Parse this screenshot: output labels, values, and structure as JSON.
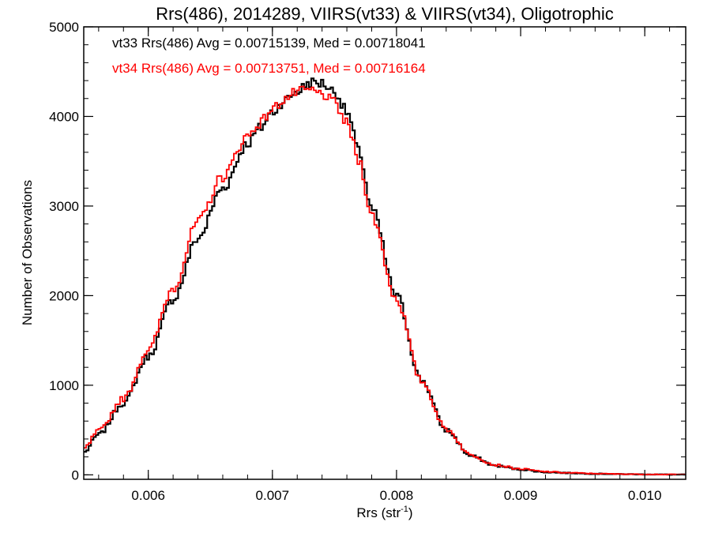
{
  "chart_data": {
    "type": "line",
    "title": "Rrs(486), 2014289, VIIRS(vt33) & VIIRS(vt34), Oligotrophic",
    "xlabel": "Rrs (str",
    "xlabel_sup": "-1",
    "xlabel_end": ")",
    "ylabel": "Number of Observations",
    "xlim": [
      0.00548,
      0.01033
    ],
    "ylim": [
      -50,
      5000
    ],
    "xticks": [
      0.006,
      0.007,
      0.008,
      0.009,
      0.01
    ],
    "xtick_labels": [
      "0.006",
      "0.007",
      "0.008",
      "0.009",
      "0.010"
    ],
    "yticks": [
      0,
      1000,
      2000,
      3000,
      4000,
      5000
    ],
    "ytick_labels": [
      "0",
      "1000",
      "2000",
      "3000",
      "4000",
      "5000"
    ],
    "grid": false,
    "series": [
      {
        "name": "vt33 Rrs(486) Avg = 0.00715139, Med = 0.00718041",
        "color": "#000000",
        "step": true,
        "x": [
          0.00548,
          0.0056,
          0.0058,
          0.006,
          0.0062,
          0.0064,
          0.0066,
          0.0068,
          0.0069,
          0.007,
          0.0071,
          0.0072,
          0.0073,
          0.0074,
          0.0075,
          0.0076,
          0.0077,
          0.0078,
          0.008,
          0.0082,
          0.0084,
          0.0086,
          0.0088,
          0.009,
          0.0092,
          0.0094,
          0.0096,
          0.0098,
          0.01,
          0.0102,
          0.01033
        ],
        "y": [
          250,
          450,
          800,
          1320,
          1960,
          2640,
          3200,
          3700,
          3870,
          4050,
          4180,
          4280,
          4380,
          4370,
          4280,
          4050,
          3600,
          2960,
          2000,
          1060,
          500,
          210,
          100,
          60,
          30,
          20,
          12,
          8,
          5,
          3,
          2
        ]
      },
      {
        "name": "vt34 Rrs(486) Avg = 0.00713751, Med = 0.00716164",
        "color": "#ff0000",
        "step": true,
        "x": [
          0.00548,
          0.0056,
          0.0058,
          0.006,
          0.0062,
          0.0064,
          0.0066,
          0.0068,
          0.0069,
          0.007,
          0.0071,
          0.0072,
          0.0073,
          0.0074,
          0.0075,
          0.0076,
          0.0077,
          0.0078,
          0.008,
          0.0082,
          0.0084,
          0.0086,
          0.0088,
          0.009,
          0.0092,
          0.0094,
          0.0096,
          0.0098,
          0.01,
          0.0102,
          0.01033
        ],
        "y": [
          290,
          490,
          850,
          1390,
          2080,
          2820,
          3330,
          3780,
          3930,
          4080,
          4200,
          4270,
          4290,
          4250,
          4150,
          3920,
          3500,
          2890,
          1960,
          1050,
          510,
          220,
          110,
          65,
          35,
          22,
          14,
          9,
          6,
          4,
          3
        ]
      }
    ]
  }
}
